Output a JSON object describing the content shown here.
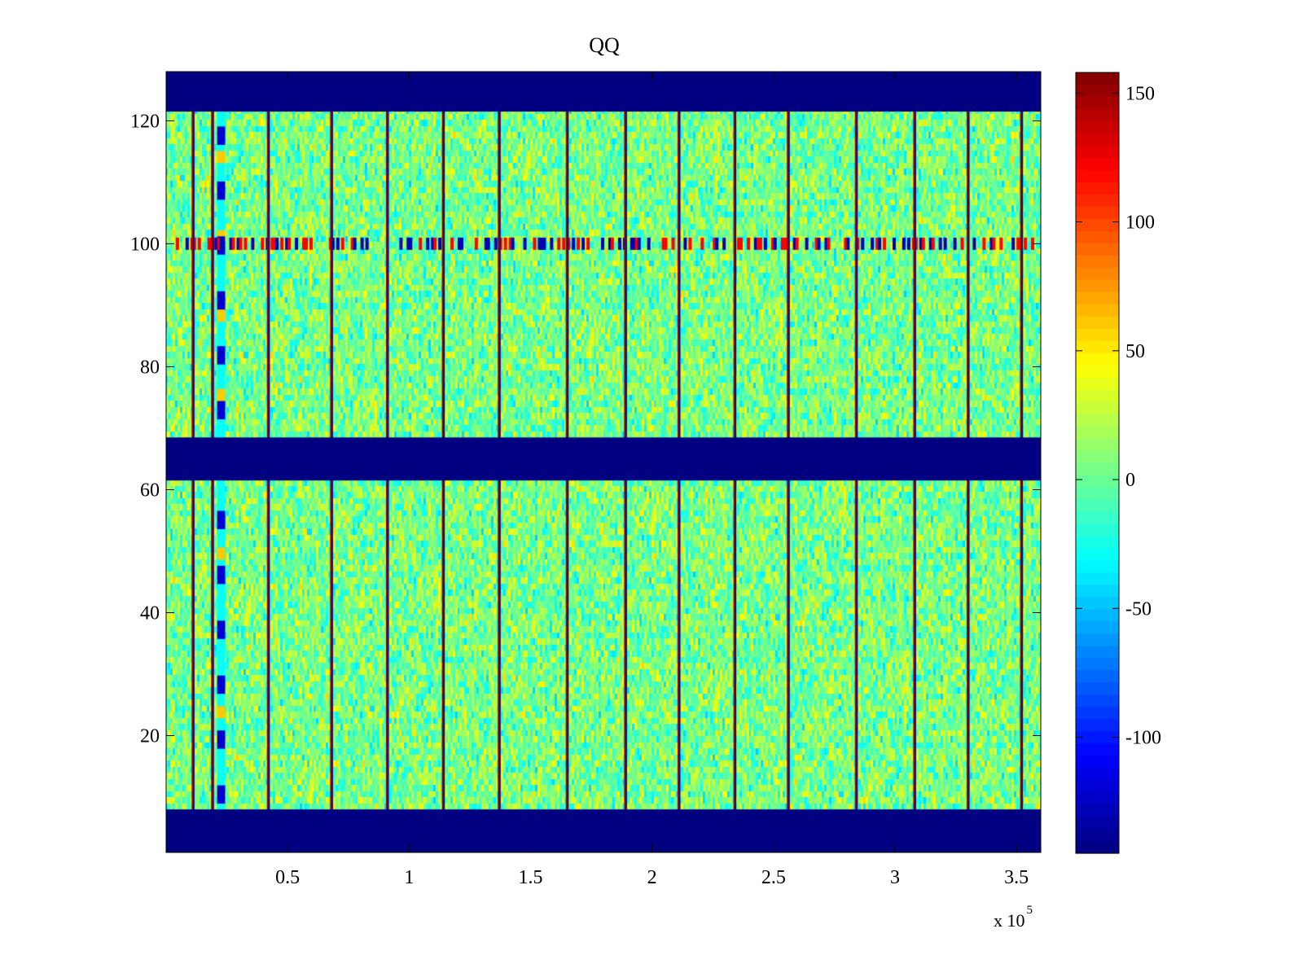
{
  "chart_data": {
    "type": "heatmap",
    "title": "QQ",
    "xlabel": "",
    "ylabel": "",
    "x_multiplier": "x 10",
    "x_multiplier_exponent": "5",
    "xlim": [
      0,
      3.6
    ],
    "ylim": [
      1,
      128
    ],
    "x_ticks": [
      {
        "value": 0.5,
        "label": "0.5"
      },
      {
        "value": 1,
        "label": "1"
      },
      {
        "value": 1.5,
        "label": "1.5"
      },
      {
        "value": 2,
        "label": "2"
      },
      {
        "value": 2.5,
        "label": "2.5"
      },
      {
        "value": 3,
        "label": "3"
      },
      {
        "value": 3.5,
        "label": "3.5"
      }
    ],
    "y_ticks": [
      {
        "value": 20,
        "label": "20"
      },
      {
        "value": 40,
        "label": "40"
      },
      {
        "value": 60,
        "label": "60"
      },
      {
        "value": 80,
        "label": "80"
      },
      {
        "value": 100,
        "label": "100"
      },
      {
        "value": 120,
        "label": "120"
      }
    ],
    "colormap": "jet",
    "clim": [
      -145,
      158
    ],
    "colorbar_ticks": [
      {
        "value": 150,
        "label": "150"
      },
      {
        "value": 100,
        "label": "100"
      },
      {
        "value": 50,
        "label": "50"
      },
      {
        "value": 0,
        "label": "0"
      },
      {
        "value": -50,
        "label": "-50"
      },
      {
        "value": -100,
        "label": "-100"
      }
    ],
    "masked_row_bands": [
      {
        "y_from": 1,
        "y_to": 8,
        "value": -145
      },
      {
        "y_from": 61.5,
        "y_to": 68.5,
        "value": -145
      },
      {
        "y_from": 121.5,
        "y_to": 128,
        "value": -145
      }
    ],
    "background_value_range": [
      -30,
      40
    ],
    "boundary_lines_x": [
      0.11,
      0.19,
      0.42,
      0.68,
      0.91,
      1.14,
      1.37,
      1.65,
      1.89,
      2.11,
      2.34,
      2.56,
      2.84,
      3.08,
      3.3,
      3.52
    ],
    "artifact_row_y": 100,
    "early_column_x": [
      0.21,
      0.31
    ]
  }
}
